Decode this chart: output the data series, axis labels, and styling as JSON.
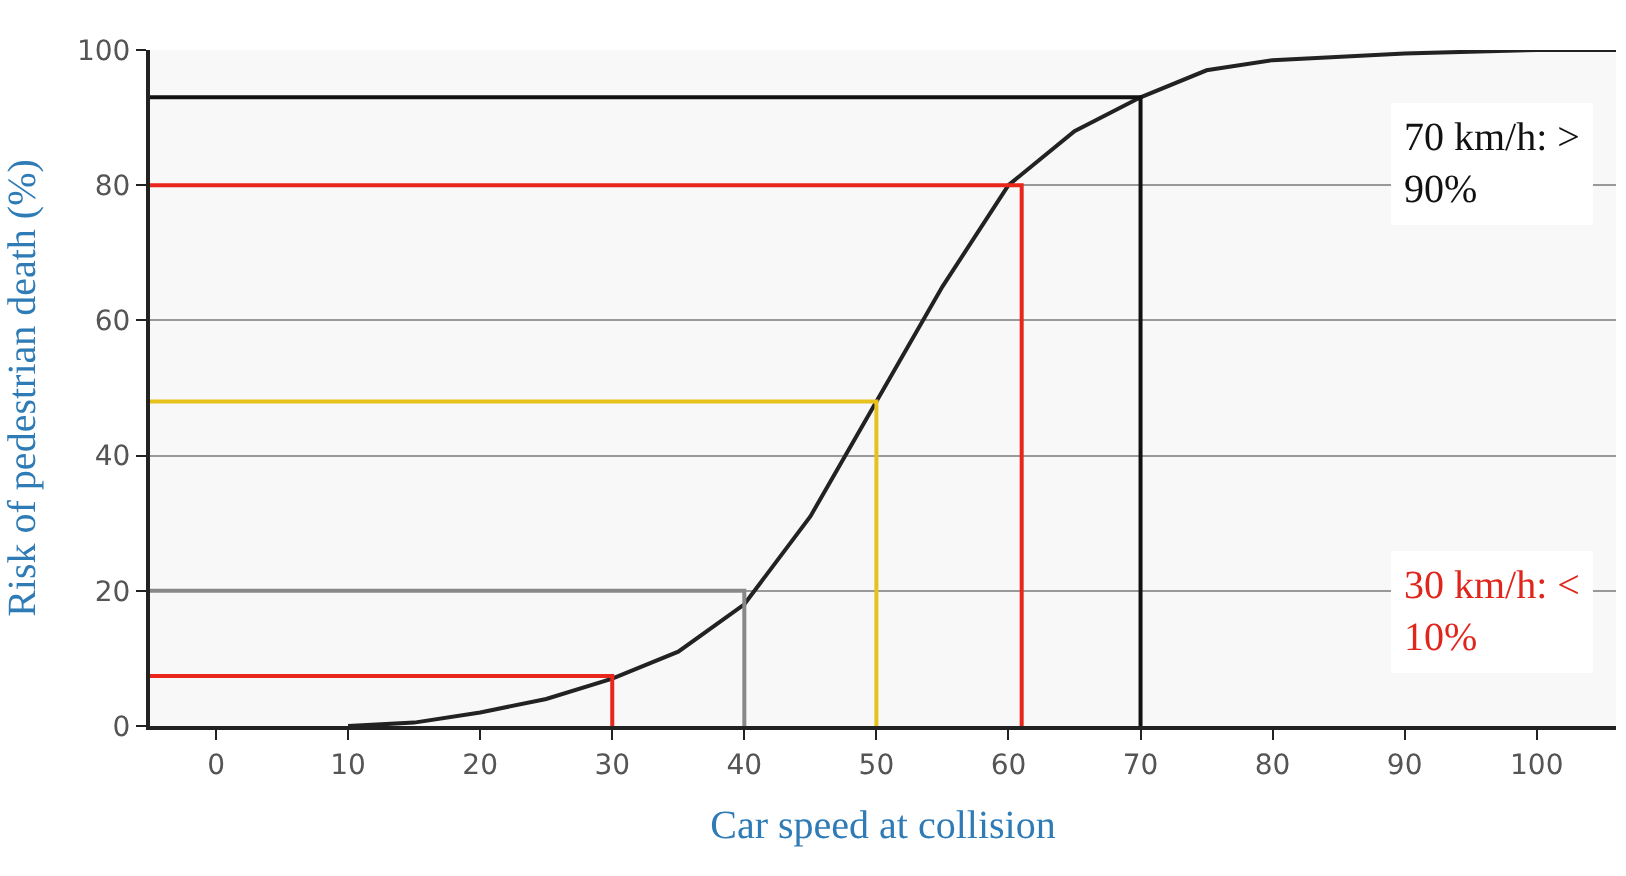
{
  "chart_data": {
    "type": "line",
    "xlabel": "Car speed at collision",
    "ylabel": "Risk of pedestrian death (%)",
    "xlim": [
      -5,
      106
    ],
    "xticks": [
      0,
      10,
      20,
      30,
      40,
      50,
      60,
      70,
      80,
      90,
      100
    ],
    "ylim": [
      0,
      100
    ],
    "yticks": [
      0,
      20,
      40,
      60,
      80,
      100
    ],
    "grid": "y",
    "marker": "none",
    "line_style": "solid",
    "series": [
      {
        "color": "#222222",
        "x": [
          10,
          15,
          20,
          25,
          30,
          35,
          40,
          45,
          50,
          55,
          60,
          65,
          70,
          75,
          80,
          90,
          100,
          106
        ],
        "values": [
          0,
          0.5,
          2,
          4,
          7,
          11,
          18,
          31,
          48,
          65,
          80,
          88,
          93,
          97,
          98.5,
          99.5,
          100,
          100
        ]
      },
      {
        "color": "#e8261c",
        "x": [
          -5,
          30,
          30
        ],
        "values": [
          7.4,
          7.4,
          0
        ]
      },
      {
        "color": "#888888",
        "x": [
          -5,
          40,
          40
        ],
        "values": [
          20,
          20,
          0
        ]
      },
      {
        "color": "#e8c21c",
        "x": [
          -5,
          50,
          50
        ],
        "values": [
          48,
          48,
          0
        ]
      },
      {
        "color": "#e8261c",
        "x": [
          -5,
          61,
          61
        ],
        "values": [
          80,
          80,
          0
        ]
      },
      {
        "color": "#111111",
        "x": [
          -5,
          70,
          70
        ],
        "values": [
          93,
          93,
          0
        ]
      }
    ],
    "annotations": [
      "70 km/h: >\n90%",
      "30 km/h: <\n10%"
    ]
  }
}
